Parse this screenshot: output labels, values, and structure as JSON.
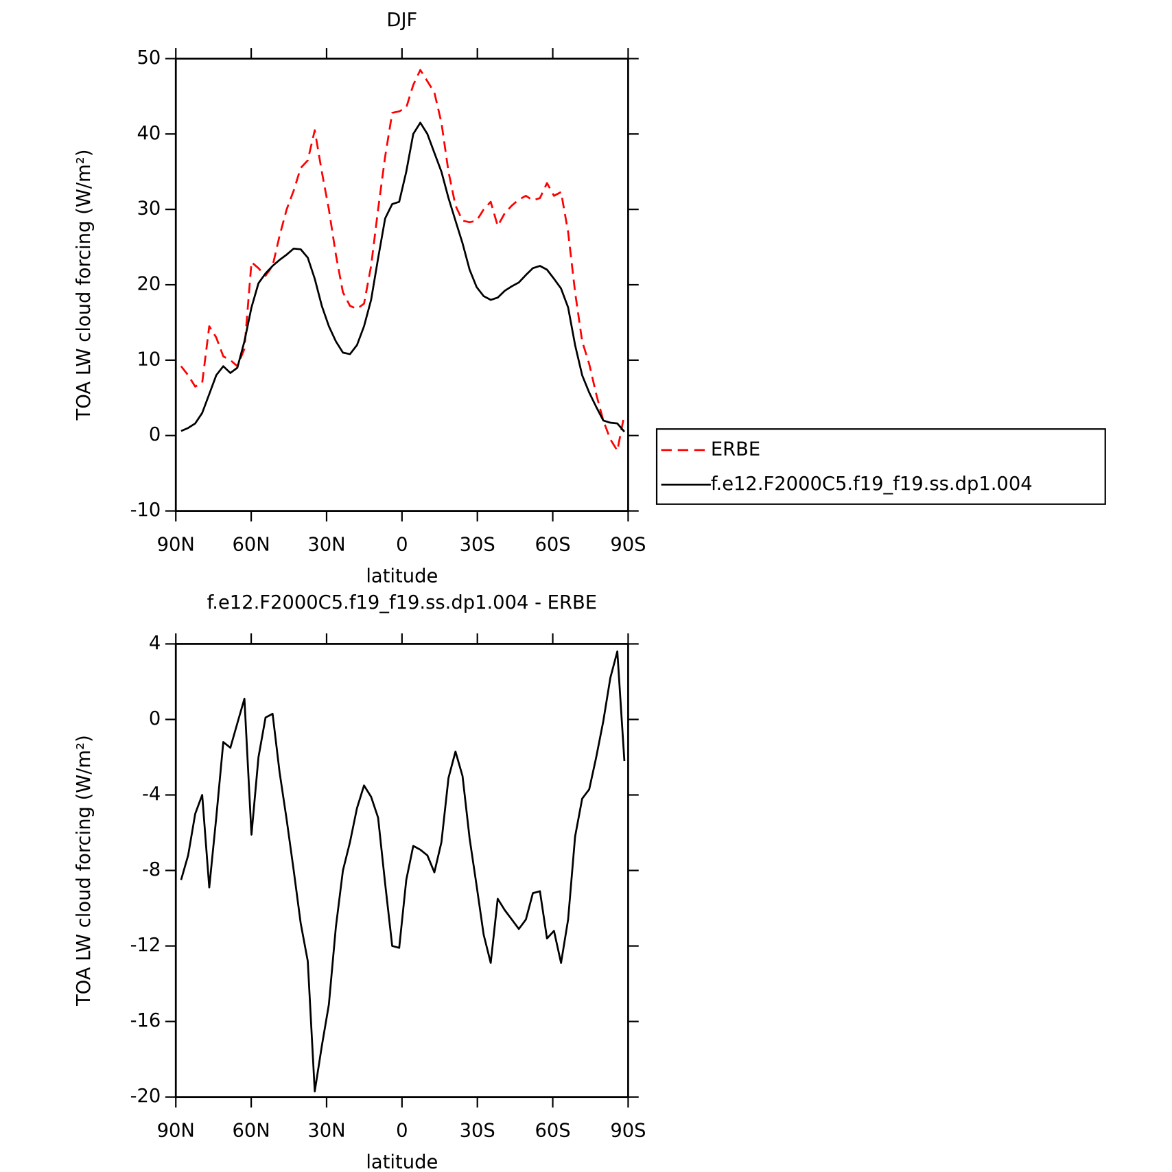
{
  "chart_data": [
    {
      "type": "line",
      "title": "DJF",
      "x_label": "latitude",
      "y_label": "TOA LW cloud forcing (W/m²)",
      "x": [
        87.9,
        85.1,
        82.3,
        79.5,
        76.7,
        73.9,
        71.1,
        68.3,
        65.5,
        62.7,
        59.9,
        57.1,
        54.3,
        51.5,
        48.7,
        45.9,
        43.1,
        40.3,
        37.5,
        34.7,
        31.9,
        29.1,
        26.3,
        23.5,
        20.7,
        17.9,
        15.1,
        12.3,
        9.5,
        6.7,
        3.9,
        1.1,
        -1.7,
        -4.5,
        -7.3,
        -10.1,
        -12.9,
        -15.7,
        -18.5,
        -21.3,
        -24.1,
        -26.9,
        -29.7,
        -32.5,
        -35.3,
        -38.1,
        -40.9,
        -43.7,
        -46.5,
        -49.3,
        -52.1,
        -54.9,
        -57.7,
        -60.5,
        -63.3,
        -66.1,
        -68.9,
        -71.7,
        -74.5,
        -77.3,
        -80.1,
        -82.9,
        -85.7,
        -88.5
      ],
      "series": [
        {
          "name": "ERBE",
          "color": "#ff0000",
          "dashed": true,
          "values": [
            9.2,
            8.0,
            6.5,
            7.0,
            14.5,
            13.0,
            10.5,
            10.0,
            9.2,
            11.5,
            23.0,
            22.2,
            21.2,
            22.5,
            26.5,
            30.0,
            32.5,
            35.5,
            36.5,
            40.5,
            35.0,
            30.0,
            24.0,
            19.0,
            17.2,
            16.8,
            17.5,
            22.5,
            30.0,
            37.0,
            42.8,
            43.0,
            43.5,
            46.5,
            48.5,
            47.0,
            45.5,
            41.5,
            35.0,
            30.5,
            28.5,
            28.3,
            28.5,
            30.0,
            31.0,
            27.8,
            29.5,
            30.5,
            31.3,
            31.8,
            31.2,
            31.5,
            33.5,
            31.8,
            32.3,
            27.0,
            19.0,
            12.5,
            9.5,
            5.5,
            2.0,
            -0.5,
            -2.0,
            2.8
          ]
        },
        {
          "name": "f.e12.F2000C5.f19_f19.ss.dp1.004",
          "color": "#000000",
          "dashed": false,
          "values": [
            0.6,
            1.0,
            1.6,
            3.0,
            5.5,
            8.0,
            9.2,
            8.3,
            9.0,
            12.5,
            17.0,
            20.2,
            21.5,
            22.5,
            23.3,
            24.0,
            24.8,
            24.7,
            23.6,
            20.8,
            17.2,
            14.5,
            12.5,
            11.0,
            10.8,
            12.0,
            14.5,
            18.0,
            23.5,
            28.8,
            30.7,
            31.0,
            35.0,
            40.0,
            41.5,
            40.0,
            37.5,
            35.0,
            31.5,
            28.5,
            25.5,
            22.0,
            19.7,
            18.5,
            18.0,
            18.3,
            19.2,
            19.8,
            20.3,
            21.3,
            22.2,
            22.5,
            22.0,
            20.8,
            19.5,
            17.0,
            12.0,
            8.0,
            5.7,
            3.8,
            2.0,
            1.7,
            1.6,
            0.5
          ]
        }
      ],
      "xlim": [
        90,
        -90
      ],
      "ylim": [
        -10,
        50
      ],
      "xticks": [
        {
          "value": 90,
          "label": "90N"
        },
        {
          "value": 60,
          "label": "60N"
        },
        {
          "value": 30,
          "label": "30N"
        },
        0,
        {
          "value": -30,
          "label": "30S"
        },
        {
          "value": -60,
          "label": "60S"
        },
        {
          "value": -90,
          "label": "90S"
        }
      ],
      "yticks": [
        -10,
        0,
        10,
        20,
        30,
        40,
        50
      ],
      "legend": "right"
    },
    {
      "type": "line",
      "title": "f.e12.F2000C5.f19_f19.ss.dp1.004 - ERBE",
      "x_label": "latitude",
      "y_label": "TOA LW cloud forcing (W/m²)",
      "x": [
        87.9,
        85.1,
        82.3,
        79.5,
        76.7,
        73.9,
        71.1,
        68.3,
        65.5,
        62.7,
        59.9,
        57.1,
        54.3,
        51.5,
        48.7,
        45.9,
        43.1,
        40.3,
        37.5,
        34.7,
        31.9,
        29.1,
        26.3,
        23.5,
        20.7,
        17.9,
        15.1,
        12.3,
        9.5,
        6.7,
        3.9,
        1.1,
        -1.7,
        -4.5,
        -7.3,
        -10.1,
        -12.9,
        -15.7,
        -18.5,
        -21.3,
        -24.1,
        -26.9,
        -29.7,
        -32.5,
        -35.3,
        -38.1,
        -40.9,
        -43.7,
        -46.5,
        -49.3,
        -52.1,
        -54.9,
        -57.7,
        -60.5,
        -63.3,
        -66.1,
        -68.9,
        -71.7,
        -74.5,
        -77.3,
        -80.1,
        -82.9,
        -85.7,
        -88.5
      ],
      "series": [
        {
          "color": "#000000",
          "dashed": false,
          "values": [
            -8.5,
            -7.2,
            -5.0,
            -4.0,
            -8.9,
            -5.2,
            -1.2,
            -1.5,
            -0.2,
            1.1,
            -6.1,
            -2.0,
            0.1,
            0.3,
            -2.8,
            -5.3,
            -8.0,
            -10.8,
            -12.8,
            -19.7,
            -17.3,
            -15.1,
            -11.0,
            -8.0,
            -6.5,
            -4.7,
            -3.5,
            -4.1,
            -5.2,
            -8.7,
            -12.0,
            -12.1,
            -8.5,
            -6.7,
            -6.9,
            -7.2,
            -8.1,
            -6.5,
            -3.1,
            -1.7,
            -3.0,
            -6.3,
            -8.8,
            -11.4,
            -12.9,
            -9.5,
            -10.1,
            -10.6,
            -11.1,
            -10.6,
            -9.2,
            -9.1,
            -11.6,
            -11.2,
            -12.9,
            -10.6,
            -6.2,
            -4.2,
            -3.7,
            -2.0,
            -0.1,
            2.2,
            3.6,
            -2.2
          ]
        }
      ],
      "xlim": [
        90,
        -90
      ],
      "ylim": [
        -20,
        4
      ],
      "xticks": [
        {
          "value": 90,
          "label": "90N"
        },
        {
          "value": 60,
          "label": "60N"
        },
        {
          "value": 30,
          "label": "30N"
        },
        0,
        {
          "value": -30,
          "label": "30S"
        },
        {
          "value": -60,
          "label": "60S"
        },
        {
          "value": -90,
          "label": "90S"
        }
      ],
      "yticks": [
        -20,
        -16,
        -12,
        -8,
        -4,
        0,
        4
      ]
    }
  ]
}
